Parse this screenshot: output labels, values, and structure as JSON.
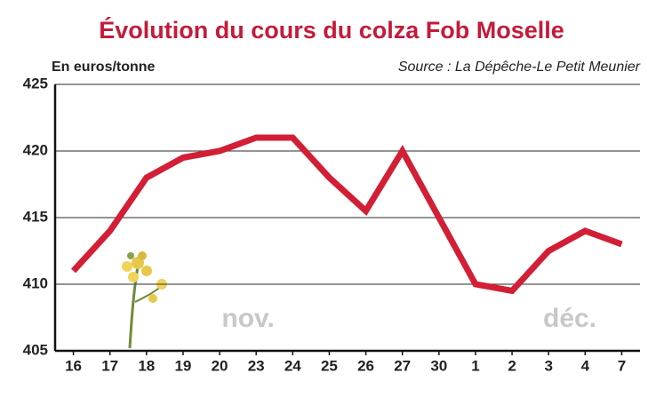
{
  "chart_data": {
    "type": "line",
    "title": "Évolution du cours du colza Fob Moselle",
    "y_label": "En euros/tonne",
    "source": "Source : La Dépêche-Le Petit Meunier",
    "annotations": [
      "nov.",
      "déc."
    ],
    "categories": [
      "16",
      "17",
      "18",
      "19",
      "20",
      "23",
      "24",
      "25",
      "26",
      "27",
      "30",
      "1",
      "2",
      "3",
      "4",
      "7"
    ],
    "values": [
      411,
      414,
      418,
      419.5,
      420,
      421,
      421,
      418,
      415.5,
      420,
      415,
      410,
      409.5,
      412.5,
      414,
      413
    ],
    "color": "#d21f36",
    "ylim": [
      405,
      425
    ],
    "yticks": [
      405,
      410,
      415,
      420,
      425
    ],
    "grid": true
  }
}
